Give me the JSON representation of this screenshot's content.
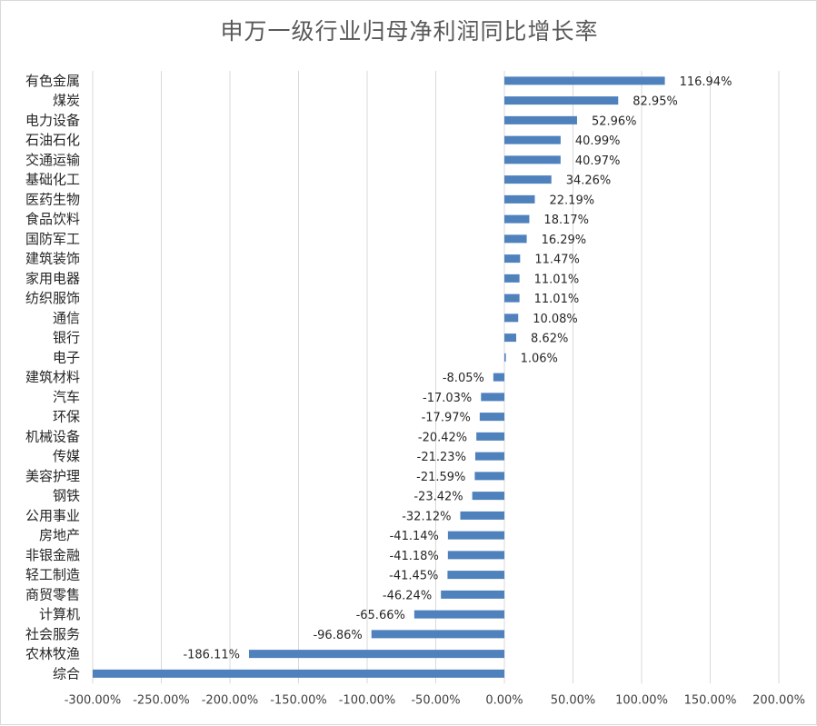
{
  "chart_data": {
    "type": "bar",
    "orientation": "horizontal",
    "title": "申万一级行业归母净利润同比增长率",
    "xlabel": "",
    "ylabel": "",
    "xlim": [
      -300,
      200
    ],
    "x_ticks": [
      -300,
      -250,
      -200,
      -150,
      -100,
      -50,
      0,
      50,
      100,
      150,
      200
    ],
    "x_tick_labels": [
      "-300.00%",
      "-250.00%",
      "-200.00%",
      "-150.00%",
      "-100.00%",
      "-50.00%",
      "0.00%",
      "50.00%",
      "100.00%",
      "150.00%",
      "200.00%"
    ],
    "grid": true,
    "legend": "none",
    "bar_color": "#4f81bd",
    "categories": [
      "有色金属",
      "煤炭",
      "电力设备",
      "石油石化",
      "交通运输",
      "基础化工",
      "医药生物",
      "食品饮料",
      "国防军工",
      "建筑装饰",
      "家用电器",
      "纺织服饰",
      "通信",
      "银行",
      "电子",
      "建筑材料",
      "汽车",
      "环保",
      "机械设备",
      "传媒",
      "美容护理",
      "钢铁",
      "公用事业",
      "房地产",
      "非银金融",
      "轻工制造",
      "商贸零售",
      "计算机",
      "社会服务",
      "农林牧渔",
      "综合"
    ],
    "values": [
      116.94,
      82.95,
      52.96,
      40.99,
      40.97,
      34.26,
      22.19,
      18.17,
      16.29,
      11.47,
      11.01,
      11.01,
      10.08,
      8.62,
      1.06,
      -8.05,
      -17.03,
      -17.97,
      -20.42,
      -21.23,
      -21.59,
      -23.42,
      -32.12,
      -41.14,
      -41.18,
      -41.45,
      -46.24,
      -65.66,
      -96.86,
      -186.11,
      -300
    ],
    "data_labels": [
      "116.94%",
      "82.95%",
      "52.96%",
      "40.99%",
      "40.97%",
      "34.26%",
      "22.19%",
      "18.17%",
      "16.29%",
      "11.47%",
      "11.01%",
      "11.01%",
      "10.08%",
      "8.62%",
      "1.06%",
      "-8.05%",
      "-17.03%",
      "-17.97%",
      "-20.42%",
      "-21.23%",
      "-21.59%",
      "-23.42%",
      "-32.12%",
      "-41.14%",
      "-41.18%",
      "-41.45%",
      "-46.24%",
      "-65.66%",
      "-96.86%",
      "-186.11%",
      ""
    ]
  }
}
